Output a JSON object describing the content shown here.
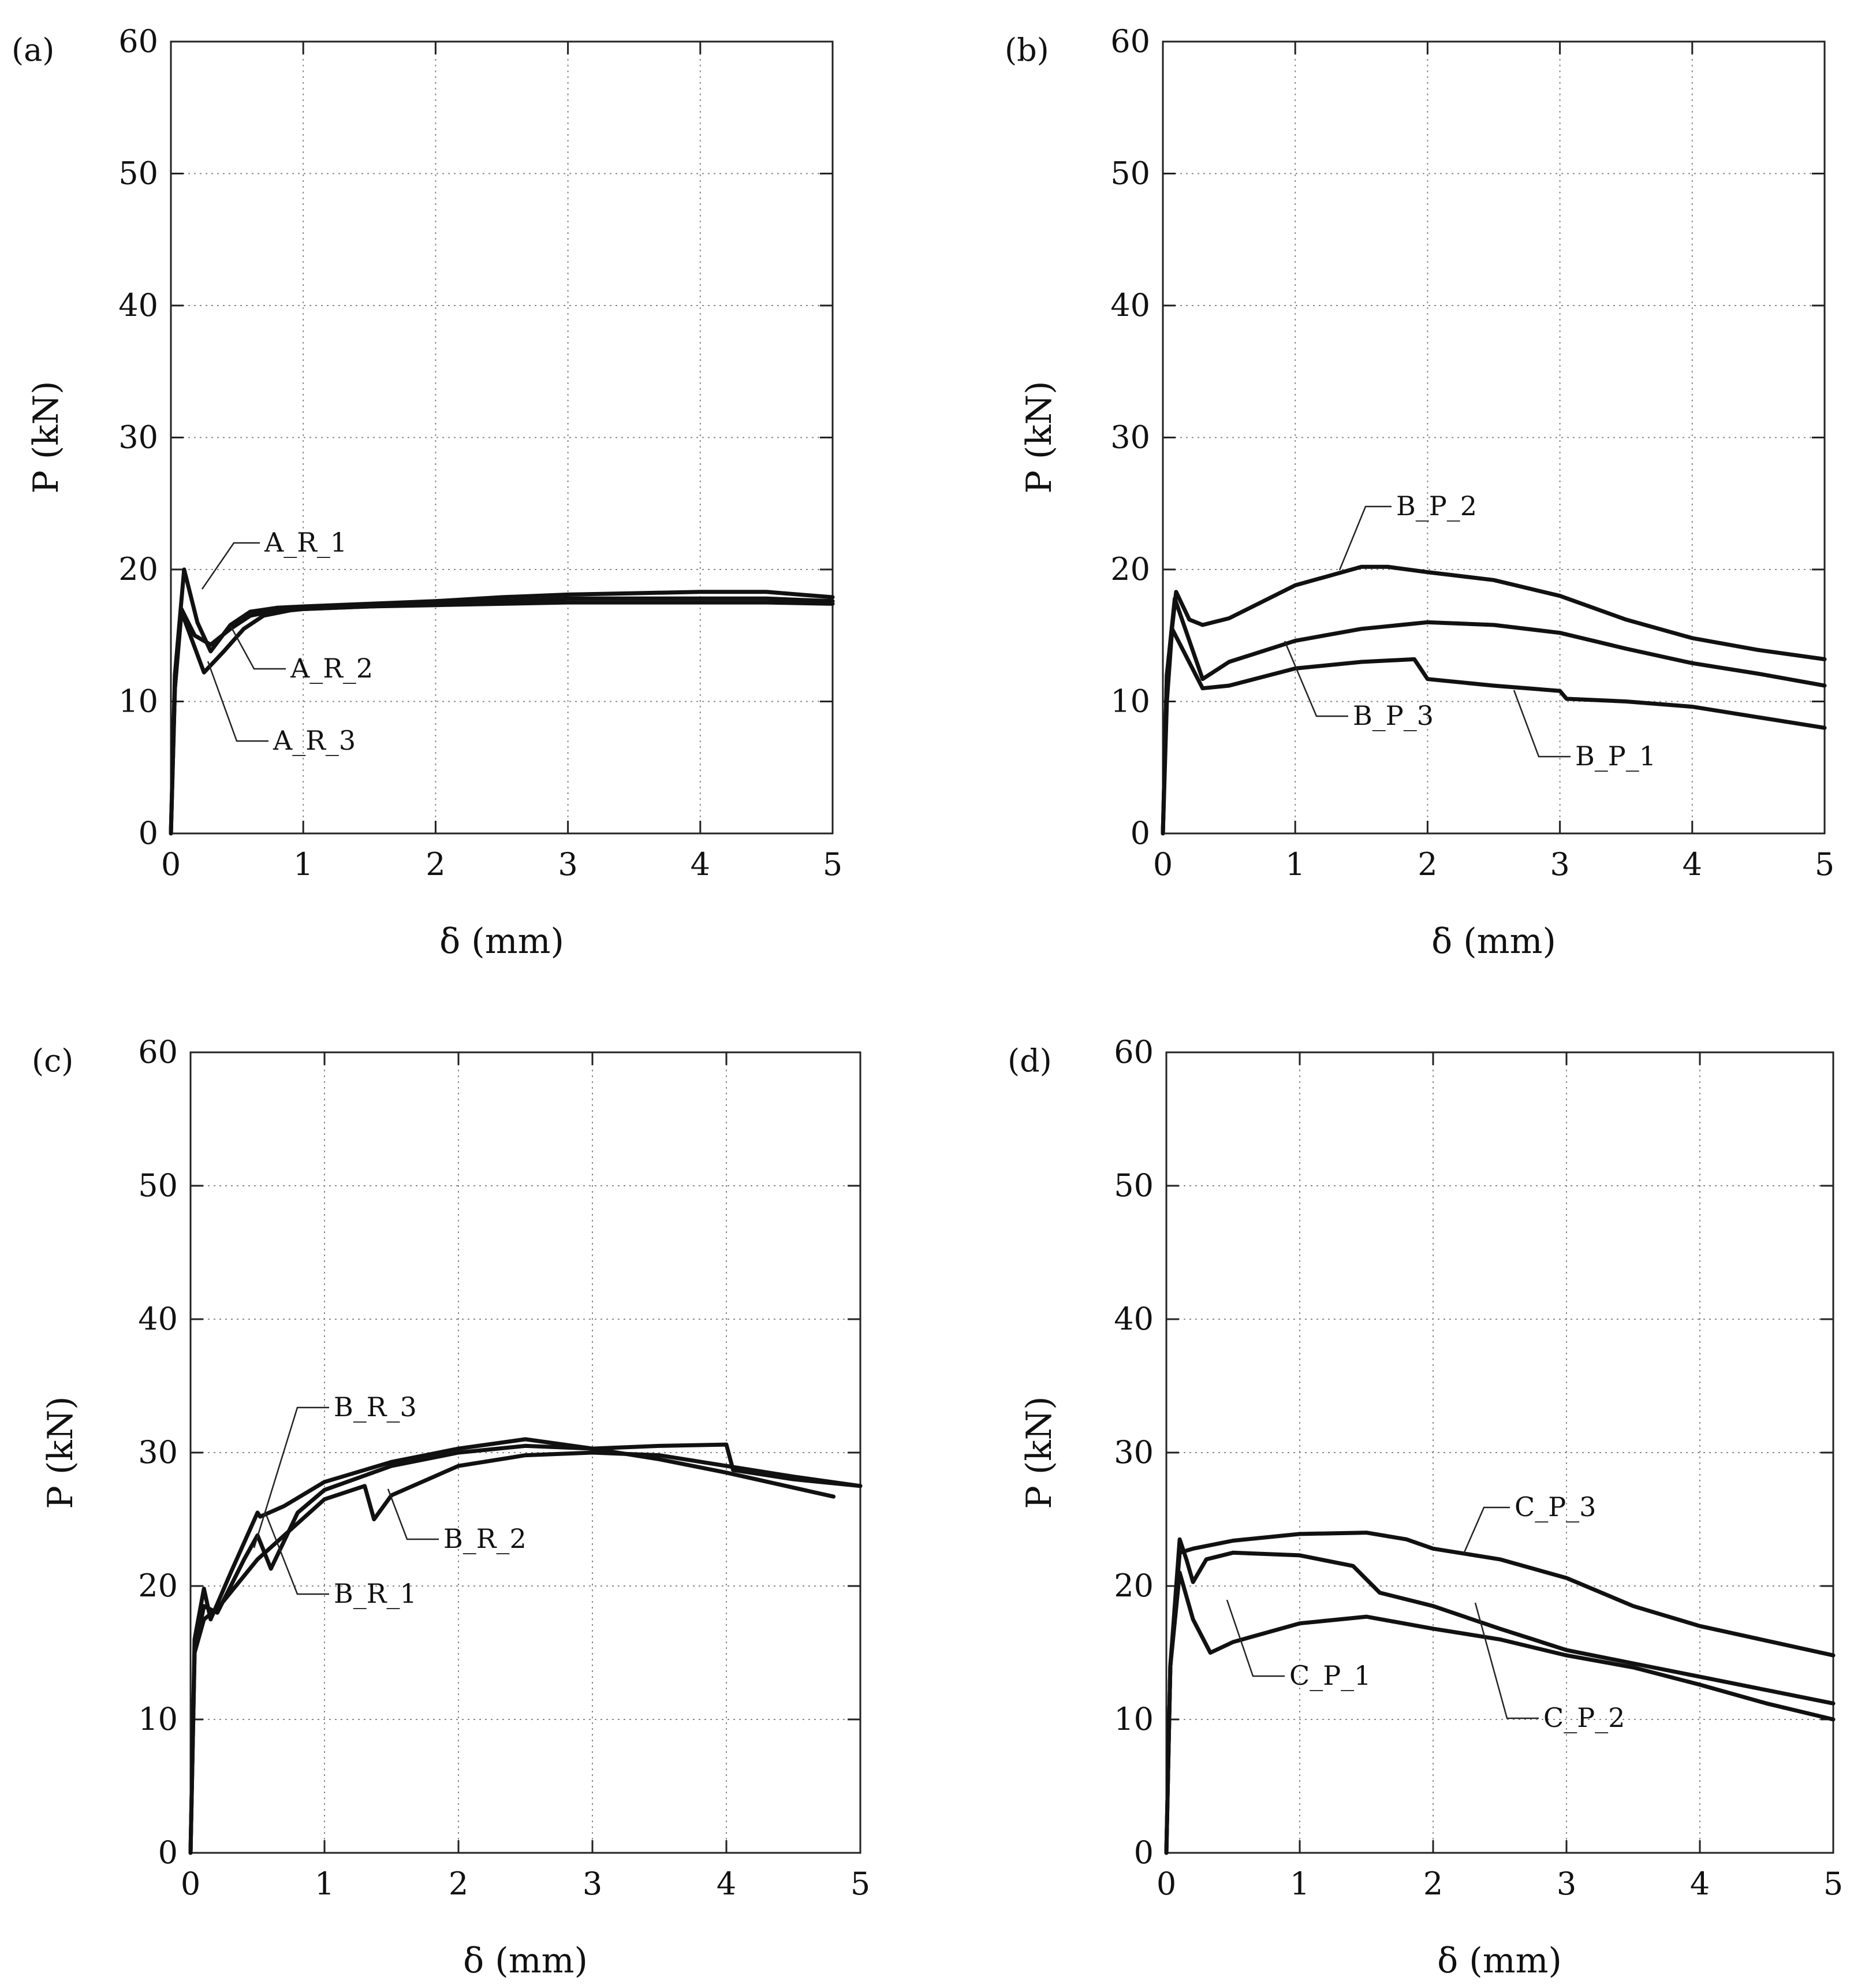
{
  "chart_data": [
    {
      "panel": "(a)",
      "type": "line",
      "xlabel": "δ (mm)",
      "ylabel": "P (kN)",
      "xlim": [
        0,
        5
      ],
      "ylim": [
        0,
        60
      ],
      "xticks": [
        "0",
        "1",
        "2",
        "3",
        "4",
        "5"
      ],
      "yticks": [
        "0",
        "10",
        "20",
        "30",
        "40",
        "50",
        "60"
      ],
      "grid": true,
      "series": [
        {
          "name": "A_R_1",
          "x": [
            0,
            0.03,
            0.1,
            0.2,
            0.3,
            0.45,
            0.6,
            0.8,
            1,
            1.5,
            2,
            2.5,
            3,
            3.5,
            4,
            4.5,
            5
          ],
          "y": [
            0,
            12,
            20,
            16,
            13.8,
            15.8,
            16.8,
            17.1,
            17.2,
            17.4,
            17.6,
            17.9,
            18.1,
            18.2,
            18.3,
            18.3,
            17.9
          ]
        },
        {
          "name": "A_R_2",
          "x": [
            0,
            0.03,
            0.08,
            0.18,
            0.3,
            0.45,
            0.6,
            0.8,
            1,
            1.5,
            2,
            2.5,
            3,
            3.5,
            4,
            4.5,
            5
          ],
          "y": [
            0,
            11,
            17,
            15,
            14.3,
            15.5,
            16.5,
            16.9,
            17,
            17.2,
            17.4,
            17.6,
            17.8,
            17.8,
            17.8,
            17.8,
            17.6
          ]
        },
        {
          "name": "A_R_3",
          "x": [
            0,
            0.03,
            0.08,
            0.25,
            0.4,
            0.55,
            0.7,
            0.9,
            1,
            1.5,
            2,
            2.5,
            3,
            3.5,
            4,
            4.5,
            5
          ],
          "y": [
            0,
            11,
            16.8,
            12.2,
            13.8,
            15.5,
            16.5,
            16.9,
            17,
            17.2,
            17.3,
            17.4,
            17.5,
            17.5,
            17.5,
            17.5,
            17.4
          ]
        }
      ],
      "annotations": [
        "A_R_1",
        "A_R_2",
        "A_R_3"
      ]
    },
    {
      "panel": "(b)",
      "type": "line",
      "xlabel": "δ (mm)",
      "ylabel": "P (kN)",
      "xlim": [
        0,
        5
      ],
      "ylim": [
        0,
        60
      ],
      "xticks": [
        "0",
        "1",
        "2",
        "3",
        "4",
        "5"
      ],
      "yticks": [
        "0",
        "10",
        "20",
        "30",
        "40",
        "50",
        "60"
      ],
      "grid": true,
      "series": [
        {
          "name": "B_P_1",
          "x": [
            0,
            0.03,
            0.07,
            0.3,
            0.5,
            1,
            1.5,
            1.9,
            2.0,
            2.5,
            3,
            3.05,
            3.5,
            4,
            4.5,
            5
          ],
          "y": [
            0,
            10,
            15.5,
            11,
            11.2,
            12.5,
            13,
            13.2,
            11.7,
            11.2,
            10.8,
            10.2,
            10,
            9.6,
            8.8,
            8
          ]
        },
        {
          "name": "B_P_2",
          "x": [
            0,
            0.03,
            0.1,
            0.2,
            0.3,
            0.5,
            1,
            1.5,
            1.7,
            2,
            2.5,
            3,
            3.5,
            4,
            4.5,
            5
          ],
          "y": [
            0,
            12,
            18.3,
            16.2,
            15.8,
            16.3,
            18.8,
            20.2,
            20.2,
            19.8,
            19.2,
            18,
            16.2,
            14.8,
            13.9,
            13.2
          ]
        },
        {
          "name": "B_P_3",
          "x": [
            0,
            0.03,
            0.09,
            0.3,
            0.5,
            1,
            1.5,
            2,
            2.5,
            3,
            3.5,
            4,
            4.5,
            5
          ],
          "y": [
            0,
            12,
            17.8,
            11.7,
            13,
            14.6,
            15.5,
            16,
            15.8,
            15.2,
            14,
            12.9,
            12.1,
            11.2
          ]
        }
      ],
      "annotations": [
        "B_P_2",
        "B_P_3",
        "B_P_1"
      ]
    },
    {
      "panel": "(c)",
      "type": "line",
      "xlabel": "δ (mm)",
      "ylabel": "P (kN)",
      "xlim": [
        0,
        5
      ],
      "ylim": [
        0,
        60
      ],
      "xticks": [
        "0",
        "1",
        "2",
        "3",
        "4",
        "5"
      ],
      "yticks": [
        "0",
        "10",
        "20",
        "30",
        "40",
        "50",
        "60"
      ],
      "grid": true,
      "series": [
        {
          "name": "B_R_1",
          "x": [
            0,
            0.03,
            0.1,
            0.2,
            0.4,
            0.5,
            0.6,
            0.8,
            1,
            1.5,
            2,
            2.5,
            3,
            3.5,
            4,
            4.05,
            4.5,
            5
          ],
          "y": [
            0,
            15,
            18.5,
            18,
            22,
            23.8,
            21.3,
            25.5,
            27.2,
            29,
            30,
            30.5,
            30.3,
            30.5,
            30.6,
            28.7,
            28,
            27.5
          ]
        },
        {
          "name": "B_R_2",
          "x": [
            0,
            0.03,
            0.1,
            0.2,
            0.5,
            1,
            1.3,
            1.37,
            1.5,
            2,
            2.5,
            3,
            3.5,
            4,
            4.5,
            5
          ],
          "y": [
            0,
            15,
            17.5,
            18.3,
            22,
            26.5,
            27.5,
            25,
            26.8,
            29,
            29.8,
            30,
            29.8,
            29,
            28.2,
            27.5
          ]
        },
        {
          "name": "B_R_3",
          "x": [
            0,
            0.03,
            0.1,
            0.15,
            0.3,
            0.5,
            0.52,
            0.7,
            1,
            1.5,
            2,
            2.5,
            3,
            3.5,
            4,
            4.8
          ],
          "y": [
            0,
            16,
            19.8,
            17.5,
            21,
            25.5,
            25.2,
            26,
            27.8,
            29.3,
            30.3,
            31,
            30.3,
            29.5,
            28.5,
            26.7
          ]
        }
      ],
      "annotations": [
        "B_R_3",
        "B_R_2",
        "B_R_1"
      ]
    },
    {
      "panel": "(d)",
      "type": "line",
      "xlabel": "δ (mm)",
      "ylabel": "P (kN)",
      "xlim": [
        0,
        5
      ],
      "ylim": [
        0,
        60
      ],
      "xticks": [
        "0",
        "1",
        "2",
        "3",
        "4",
        "5"
      ],
      "yticks": [
        "0",
        "10",
        "20",
        "30",
        "40",
        "50",
        "60"
      ],
      "grid": true,
      "series": [
        {
          "name": "C_P_1",
          "x": [
            0,
            0.03,
            0.1,
            0.2,
            0.33,
            0.5,
            1,
            1.5,
            2,
            2.5,
            3,
            3.5,
            4,
            4.5,
            5
          ],
          "y": [
            0,
            14,
            21,
            17.5,
            15,
            15.8,
            17.2,
            17.7,
            16.8,
            16,
            14.8,
            13.9,
            12.6,
            11.2,
            10
          ]
        },
        {
          "name": "C_P_2",
          "x": [
            0,
            0.03,
            0.1,
            0.15,
            0.2,
            0.3,
            0.5,
            1,
            1.4,
            1.6,
            2,
            2.5,
            3,
            3.5,
            4,
            4.5,
            5
          ],
          "y": [
            0,
            14,
            23.5,
            22,
            20.3,
            22,
            22.5,
            22.3,
            21.5,
            19.5,
            18.5,
            16.8,
            15.2,
            14.2,
            13.2,
            12.2,
            11.2
          ]
        },
        {
          "name": "C_P_3",
          "x": [
            0,
            0.03,
            0.1,
            0.2,
            0.5,
            1,
            1.5,
            1.8,
            2,
            2.5,
            3,
            3.5,
            4,
            4.5,
            5
          ],
          "y": [
            0,
            14,
            22.5,
            22.8,
            23.4,
            23.9,
            24,
            23.5,
            22.8,
            22,
            20.6,
            18.5,
            17,
            15.9,
            14.8
          ]
        }
      ],
      "annotations": [
        "C_P_3",
        "C_P_1",
        "C_P_2"
      ]
    }
  ]
}
